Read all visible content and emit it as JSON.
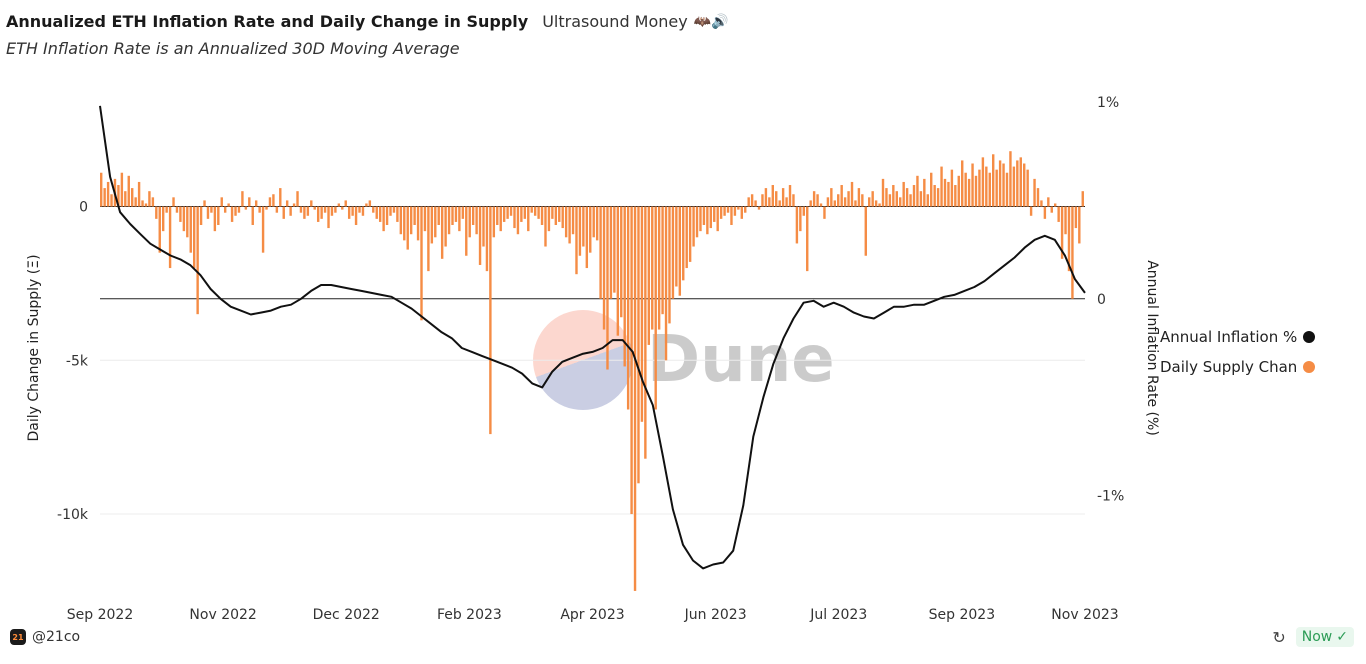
{
  "header": {
    "title": "Annualized ETH Inflation Rate and Daily Change in Supply",
    "brand": "Ultrasound Money",
    "brand_emoji": "🦇🔊",
    "subtitle": "ETH Inflation Rate is an Annualized 30D Moving Average"
  },
  "footer": {
    "avatar_text": "21",
    "user": "@21co",
    "status": "Now",
    "status_icon": "✓",
    "refresh_icon": "↻"
  },
  "watermark": {
    "text": "Dune"
  },
  "colors": {
    "bar": "#f58c45",
    "line": "#111111",
    "grid": "#ececec",
    "axis": "#222222"
  },
  "chart_data": {
    "type": "bar+line",
    "x_ticks": [
      "Sep 2022",
      "Nov 2022",
      "Dec 2022",
      "Feb 2023",
      "Apr 2023",
      "Jun 2023",
      "Jul 2023",
      "Sep 2023",
      "Nov 2023"
    ],
    "left_axis": {
      "label": "Daily Change in Supply (Ξ)",
      "ticks": [
        0,
        -5000,
        -10000
      ],
      "tick_labels": [
        "0",
        "-5k",
        "-10k"
      ],
      "range": [
        -12600,
        3400
      ]
    },
    "right_axis": {
      "label": "Annual Inflation Rate (%)",
      "ticks": [
        1,
        0,
        -1
      ],
      "tick_labels": [
        "1%",
        "0",
        "-1%"
      ],
      "range": [
        -1.5,
        1.0
      ]
    },
    "legend": [
      "Annual Inflation %",
      "Daily Supply Chan"
    ],
    "series": [
      {
        "name": "Daily Supply Change",
        "kind": "bar",
        "axis": "left",
        "values": [
          1100,
          600,
          800,
          400,
          900,
          700,
          1100,
          500,
          1000,
          600,
          300,
          800,
          200,
          100,
          500,
          300,
          -400,
          -1500,
          -800,
          -200,
          -2000,
          300,
          -200,
          -500,
          -800,
          -1000,
          -1500,
          -2000,
          -3500,
          -600,
          200,
          -400,
          -200,
          -800,
          -600,
          300,
          -200,
          100,
          -500,
          -300,
          -200,
          500,
          -100,
          300,
          -600,
          200,
          -200,
          -1500,
          -100,
          300,
          400,
          -200,
          600,
          -400,
          200,
          -300,
          100,
          500,
          -200,
          -400,
          -300,
          200,
          -100,
          -500,
          -400,
          -200,
          -700,
          -300,
          -200,
          100,
          -100,
          200,
          -400,
          -300,
          -600,
          -200,
          -300,
          100,
          200,
          -200,
          -400,
          -500,
          -800,
          -600,
          -300,
          -200,
          -500,
          -900,
          -1100,
          -1400,
          -900,
          -600,
          -1100,
          -3700,
          -800,
          -2100,
          -1200,
          -1000,
          -600,
          -1700,
          -1300,
          -900,
          -600,
          -500,
          -800,
          -400,
          -1600,
          -1000,
          -600,
          -900,
          -1900,
          -1300,
          -2100,
          -7400,
          -1000,
          -600,
          -800,
          -500,
          -400,
          -300,
          -700,
          -900,
          -500,
          -400,
          -800,
          -200,
          -300,
          -400,
          -600,
          -1300,
          -800,
          -400,
          -600,
          -500,
          -700,
          -1000,
          -1200,
          -900,
          -2200,
          -1600,
          -1300,
          -2000,
          -1500,
          -1000,
          -1100,
          -3000,
          -4000,
          -5300,
          -3000,
          -2800,
          -4200,
          -3600,
          -5200,
          -6600,
          -10000,
          -12500,
          -9000,
          -7000,
          -8200,
          -4500,
          -4000,
          -6600,
          -4000,
          -3500,
          -5000,
          -3800,
          -3000,
          -2600,
          -2900,
          -2400,
          -2000,
          -1800,
          -1300,
          -1000,
          -800,
          -600,
          -900,
          -700,
          -500,
          -800,
          -400,
          -300,
          -200,
          -600,
          -300,
          -100,
          -400,
          -200,
          300,
          400,
          200,
          -100,
          400,
          600,
          300,
          700,
          500,
          200,
          600,
          300,
          700,
          400,
          -1200,
          -800,
          -300,
          -2100,
          200,
          500,
          400,
          100,
          -400,
          300,
          600,
          200,
          400,
          700,
          300,
          500,
          800,
          200,
          600,
          400,
          -1600,
          300,
          500,
          200,
          100,
          900,
          600,
          400,
          700,
          500,
          300,
          800,
          600,
          400,
          700,
          1000,
          500,
          900,
          400,
          1100,
          700,
          600,
          1300,
          900,
          800,
          1200,
          700,
          1000,
          1500,
          1100,
          900,
          1400,
          1000,
          1200,
          1600,
          1300,
          1100,
          1700,
          1200,
          1500,
          1400,
          1100,
          1800,
          1300,
          1500,
          1600,
          1400,
          1200,
          -300,
          900,
          600,
          200,
          -400,
          300,
          -200,
          100,
          -500,
          -1700,
          -900,
          -2100,
          -3000,
          -700,
          -1200,
          500
        ]
      },
      {
        "name": "Annual Inflation %",
        "kind": "line",
        "axis": "right",
        "values": [
          0.98,
          0.62,
          0.44,
          0.38,
          0.33,
          0.28,
          0.25,
          0.22,
          0.2,
          0.17,
          0.12,
          0.05,
          0.0,
          -0.04,
          -0.06,
          -0.08,
          -0.07,
          -0.06,
          -0.04,
          -0.03,
          0.0,
          0.04,
          0.07,
          0.07,
          0.06,
          0.05,
          0.04,
          0.03,
          0.02,
          0.01,
          -0.02,
          -0.05,
          -0.09,
          -0.13,
          -0.17,
          -0.2,
          -0.25,
          -0.27,
          -0.29,
          -0.31,
          -0.33,
          -0.35,
          -0.38,
          -0.43,
          -0.45,
          -0.37,
          -0.32,
          -0.3,
          -0.28,
          -0.27,
          -0.25,
          -0.21,
          -0.21,
          -0.27,
          -0.42,
          -0.54,
          -0.8,
          -1.07,
          -1.25,
          -1.33,
          -1.37,
          -1.35,
          -1.34,
          -1.28,
          -1.05,
          -0.7,
          -0.5,
          -0.33,
          -0.2,
          -0.1,
          -0.02,
          -0.01,
          -0.04,
          -0.02,
          -0.04,
          -0.07,
          -0.09,
          -0.1,
          -0.07,
          -0.04,
          -0.04,
          -0.03,
          -0.03,
          -0.01,
          0.01,
          0.02,
          0.04,
          0.06,
          0.09,
          0.13,
          0.17,
          0.21,
          0.26,
          0.3,
          0.32,
          0.3,
          0.22,
          0.1,
          0.03
        ]
      }
    ]
  }
}
